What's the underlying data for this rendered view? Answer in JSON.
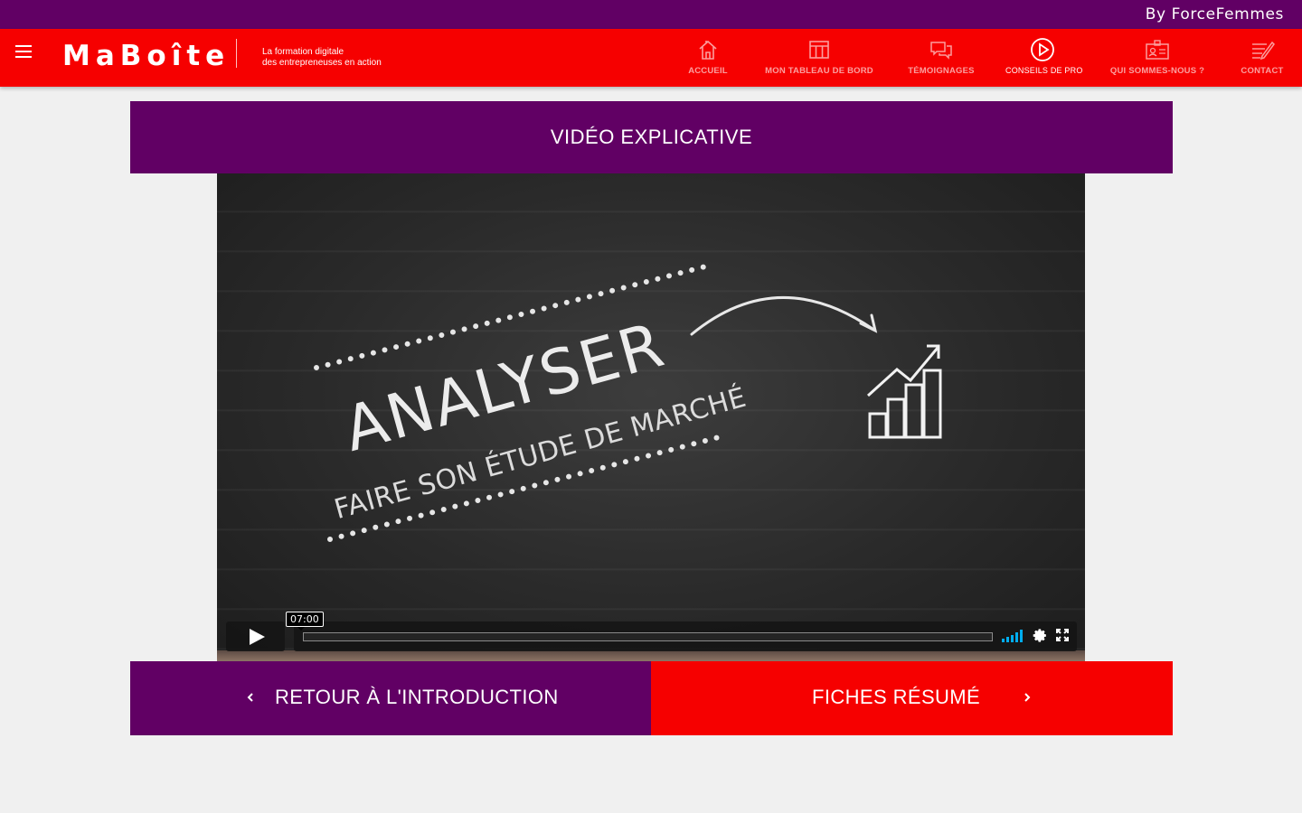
{
  "topbar": {
    "by_text": "By ForceFemmes"
  },
  "header": {
    "logo": "MaBoîte",
    "tagline_line1": "La formation digitale",
    "tagline_line2": "des entrepreneuses en action"
  },
  "nav": {
    "items": [
      {
        "label": "ACCUEIL",
        "icon": "home-icon"
      },
      {
        "label": "MON TABLEAU DE BORD",
        "icon": "grid-icon"
      },
      {
        "label": "TÉMOIGNAGES",
        "icon": "chat-bubbles-icon"
      },
      {
        "label": "CONSEILS DE PRO",
        "icon": "play-circle-icon"
      },
      {
        "label": "QUI SOMMES-NOUS ?",
        "icon": "id-card-icon"
      },
      {
        "label": "CONTACT",
        "icon": "pen-note-icon"
      }
    ]
  },
  "section": {
    "title": "VIDÉO EXPLICATIVE"
  },
  "video": {
    "chalk_title": "ANALYSER",
    "chalk_subtitle": "FAIRE SON ÉTUDE DE MARCHÉ",
    "duration": "07:00",
    "progress": 0
  },
  "footer_nav": {
    "prev_label": "RETOUR À L'INTRODUCTION",
    "next_label": "FICHES RÉSUMÉ"
  },
  "colors": {
    "purple": "#610064",
    "red": "#f60000",
    "volume_blue": "#00adef"
  }
}
